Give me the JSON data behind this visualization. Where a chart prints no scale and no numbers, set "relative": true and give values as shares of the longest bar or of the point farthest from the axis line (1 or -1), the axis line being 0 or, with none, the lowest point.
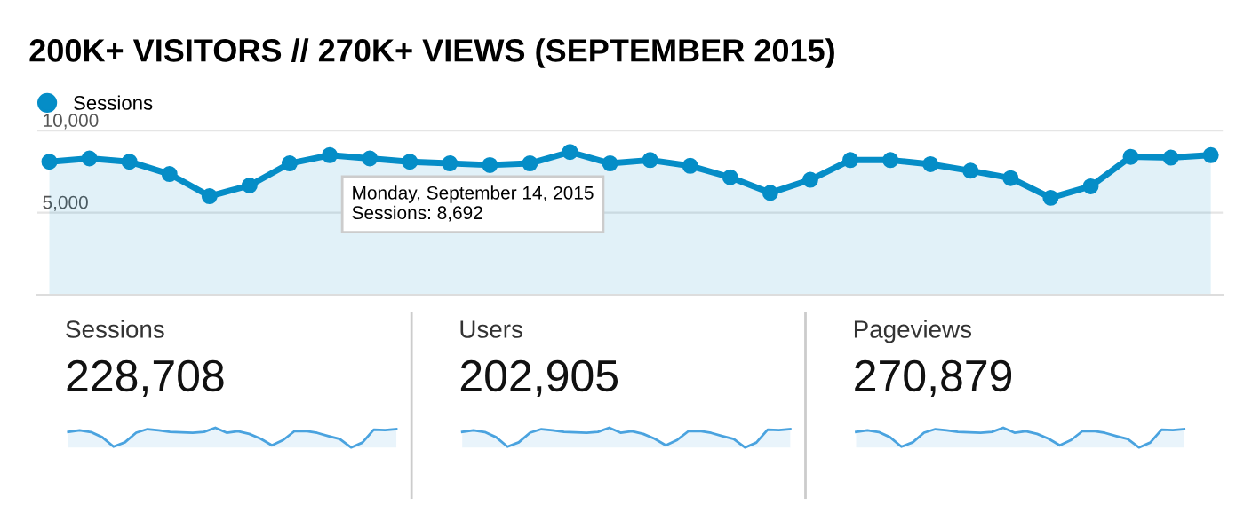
{
  "chart_data": [
    {
      "type": "area",
      "title": "200K+ VISITORS // 270K+ VIEWS (SEPTEMBER 2015)",
      "categories": [
        null,
        null,
        null,
        null,
        null,
        null,
        null,
        null,
        null,
        null,
        null,
        null,
        null,
        null,
        null,
        null,
        null,
        null,
        null,
        null,
        null,
        null,
        null,
        null,
        null,
        null,
        null,
        null,
        null,
        null
      ],
      "series": [
        {
          "name": "Sessions",
          "color": "#058dc7",
          "values": [
            8100,
            8300,
            8100,
            7350,
            6000,
            6650,
            8000,
            8500,
            8300,
            8100,
            8000,
            7900,
            8000,
            8692,
            8000,
            8200,
            7850,
            7150,
            6200,
            7000,
            8200,
            8200,
            7950,
            7550,
            7100,
            5900,
            6600,
            8400,
            8350,
            8500
          ]
        }
      ],
      "ylim": [
        0,
        10000
      ],
      "yticks": [
        {
          "value": 5000,
          "label": "5,000"
        },
        {
          "value": 10000,
          "label": "10,000"
        }
      ],
      "grid": "y",
      "legend": "top left",
      "marker": "circle",
      "line_style": "solid",
      "tick_labels": "y",
      "annotations": [
        "Monday, September 14, 2015\nSessions: 8,692"
      ]
    },
    {
      "type": "other",
      "annotations": [
        "Sessions",
        "228,708",
        "Users",
        "202,905",
        "Pageviews",
        "270,879"
      ]
    },
    {
      "type": "area",
      "relative": true,
      "categories": [
        null,
        null,
        null,
        null,
        null,
        null,
        null,
        null,
        null,
        null,
        null,
        null,
        null,
        null,
        null,
        null,
        null,
        null,
        null,
        null,
        null,
        null,
        null,
        null,
        null,
        null,
        null,
        null,
        null,
        null
      ],
      "series": [
        {
          "color": "#4aa3df",
          "values": [
            0.79,
            0.87,
            0.78,
            0.52,
            0.04,
            0.26,
            0.75,
            0.93,
            0.87,
            0.79,
            0.77,
            0.75,
            0.79,
            1,
            0.75,
            0.82,
            0.69,
            0.45,
            0.11,
            0.38,
            0.83,
            0.83,
            0.74,
            0.58,
            0.43,
            0,
            0.25,
            0.9,
            0.88,
            0.93
          ]
        }
      ]
    },
    {
      "type": "area",
      "relative": true,
      "categories": [
        null,
        null,
        null,
        null,
        null,
        null,
        null,
        null,
        null,
        null,
        null,
        null,
        null,
        null,
        null,
        null,
        null,
        null,
        null,
        null,
        null,
        null,
        null,
        null,
        null,
        null,
        null,
        null,
        null,
        null
      ],
      "series": [
        {
          "color": "#4aa3df",
          "values": [
            0.79,
            0.87,
            0.78,
            0.52,
            0.04,
            0.26,
            0.75,
            0.93,
            0.87,
            0.79,
            0.77,
            0.75,
            0.79,
            1,
            0.75,
            0.82,
            0.69,
            0.45,
            0.11,
            0.38,
            0.83,
            0.83,
            0.74,
            0.58,
            0.43,
            0,
            0.25,
            0.9,
            0.88,
            0.93
          ]
        }
      ]
    },
    {
      "type": "area",
      "relative": true,
      "categories": [
        null,
        null,
        null,
        null,
        null,
        null,
        null,
        null,
        null,
        null,
        null,
        null,
        null,
        null,
        null,
        null,
        null,
        null,
        null,
        null,
        null,
        null,
        null,
        null,
        null,
        null,
        null,
        null,
        null,
        null
      ],
      "series": [
        {
          "color": "#4aa3df",
          "values": [
            0.79,
            0.87,
            0.78,
            0.52,
            0.04,
            0.26,
            0.75,
            0.93,
            0.87,
            0.79,
            0.77,
            0.75,
            0.79,
            1,
            0.75,
            0.82,
            0.69,
            0.45,
            0.11,
            0.38,
            0.83,
            0.83,
            0.74,
            0.58,
            0.43,
            0,
            0.25,
            0.9,
            0.88,
            0.93
          ]
        }
      ]
    }
  ]
}
